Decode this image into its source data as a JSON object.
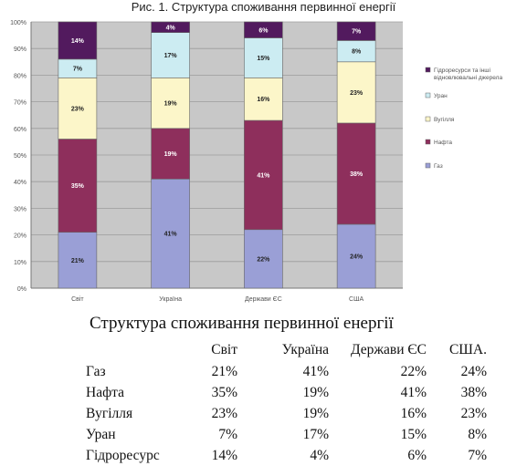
{
  "caption": "Рис. 1. Структура споживання первинної енергії",
  "chart_data": {
    "type": "bar",
    "stacked": true,
    "percent": true,
    "categories": [
      "Світ",
      "Україна",
      "Держави ЄС",
      "США"
    ],
    "series": [
      {
        "name": "Газ",
        "color": "#9a9fd6",
        "values": [
          21,
          41,
          22,
          24
        ]
      },
      {
        "name": "Нафта",
        "color": "#8e2f5c",
        "values": [
          35,
          19,
          41,
          38
        ]
      },
      {
        "name": "Вугілля",
        "color": "#fcf6c9",
        "values": [
          23,
          19,
          16,
          23
        ]
      },
      {
        "name": "Уран",
        "color": "#ccecf2",
        "values": [
          7,
          17,
          15,
          8
        ]
      },
      {
        "name": "Гідроресурси та інші відновлювальні джерела",
        "color": "#521a5e",
        "values": [
          14,
          4,
          6,
          7
        ]
      }
    ],
    "yticks": [
      "0%",
      "10%",
      "20%",
      "30%",
      "40%",
      "50%",
      "60%",
      "70%",
      "80%",
      "90%",
      "100%"
    ],
    "ylim": [
      0,
      100
    ],
    "legend": "right",
    "grid": true,
    "plot_bg": "#c8c8c8"
  },
  "table": {
    "title": "Структура споживання первинної енергії",
    "columns": [
      "Світ",
      "Україна",
      "Держави ЄС",
      "США."
    ],
    "rows": [
      {
        "label": "Газ",
        "values": [
          "21%",
          "41%",
          "22%",
          "24%"
        ]
      },
      {
        "label": "Нафта",
        "values": [
          "35%",
          "19%",
          "41%",
          "38%"
        ]
      },
      {
        "label": "Вугілля",
        "values": [
          "23%",
          "19%",
          "16%",
          "23%"
        ]
      },
      {
        "label": "Уран",
        "values": [
          "7%",
          "17%",
          "15%",
          "8%"
        ]
      },
      {
        "label": "Гідроресурс",
        "values": [
          "14%",
          "4%",
          "6%",
          "7%"
        ]
      }
    ]
  }
}
